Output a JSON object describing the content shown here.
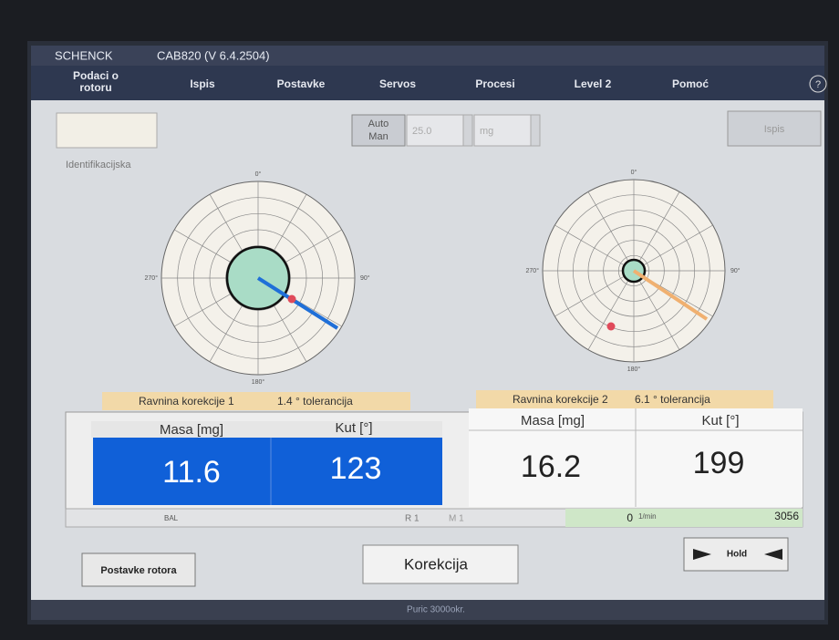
{
  "title_bar": {
    "brand": "SCHENCK",
    "version": "CAB820 (V 6.4.2504)"
  },
  "menu": [
    [
      "Podaci o",
      "rotoru"
    ],
    [
      "Ispis"
    ],
    [
      "Postavke"
    ],
    [
      "Servos"
    ],
    [
      "Procesi"
    ],
    [
      "Level 2"
    ],
    [
      "Pomoć"
    ]
  ],
  "help": "?",
  "toolbar": {
    "mode": [
      "Auto",
      "Man"
    ],
    "value": "25.0",
    "unit": "mg",
    "print": "Ispis"
  },
  "id_label": "Identifikacijska",
  "polar": [
    {
      "labels": [
        "0°",
        "90°",
        "180°",
        "270°"
      ]
    },
    {
      "labels": [
        "0°",
        "90°",
        "180°",
        "270°"
      ]
    }
  ],
  "planes": [
    {
      "name": "Ravnina korekcije 1",
      "tolerance": "1.4 ° tolerancija",
      "headers": [
        "Masa [mg]",
        "Kut [°]"
      ],
      "values": [
        "11.6",
        "123"
      ]
    },
    {
      "name": "Ravnina korekcije 2",
      "tolerance": "6.1 ° tolerancija",
      "headers": [
        "Masa [mg]",
        "Kut [°]"
      ],
      "values": [
        "16.2",
        "199"
      ]
    }
  ],
  "status": {
    "bal": "BAL",
    "r": "R 1",
    "m": "M 1",
    "speed": "0",
    "speed_unit": "1/min",
    "max_speed": "3056"
  },
  "bottom": {
    "rotor_settings": "Postavke rotora",
    "mode": "Korekcija",
    "hold": "Hold",
    "footer": "Puric 3000okr."
  }
}
